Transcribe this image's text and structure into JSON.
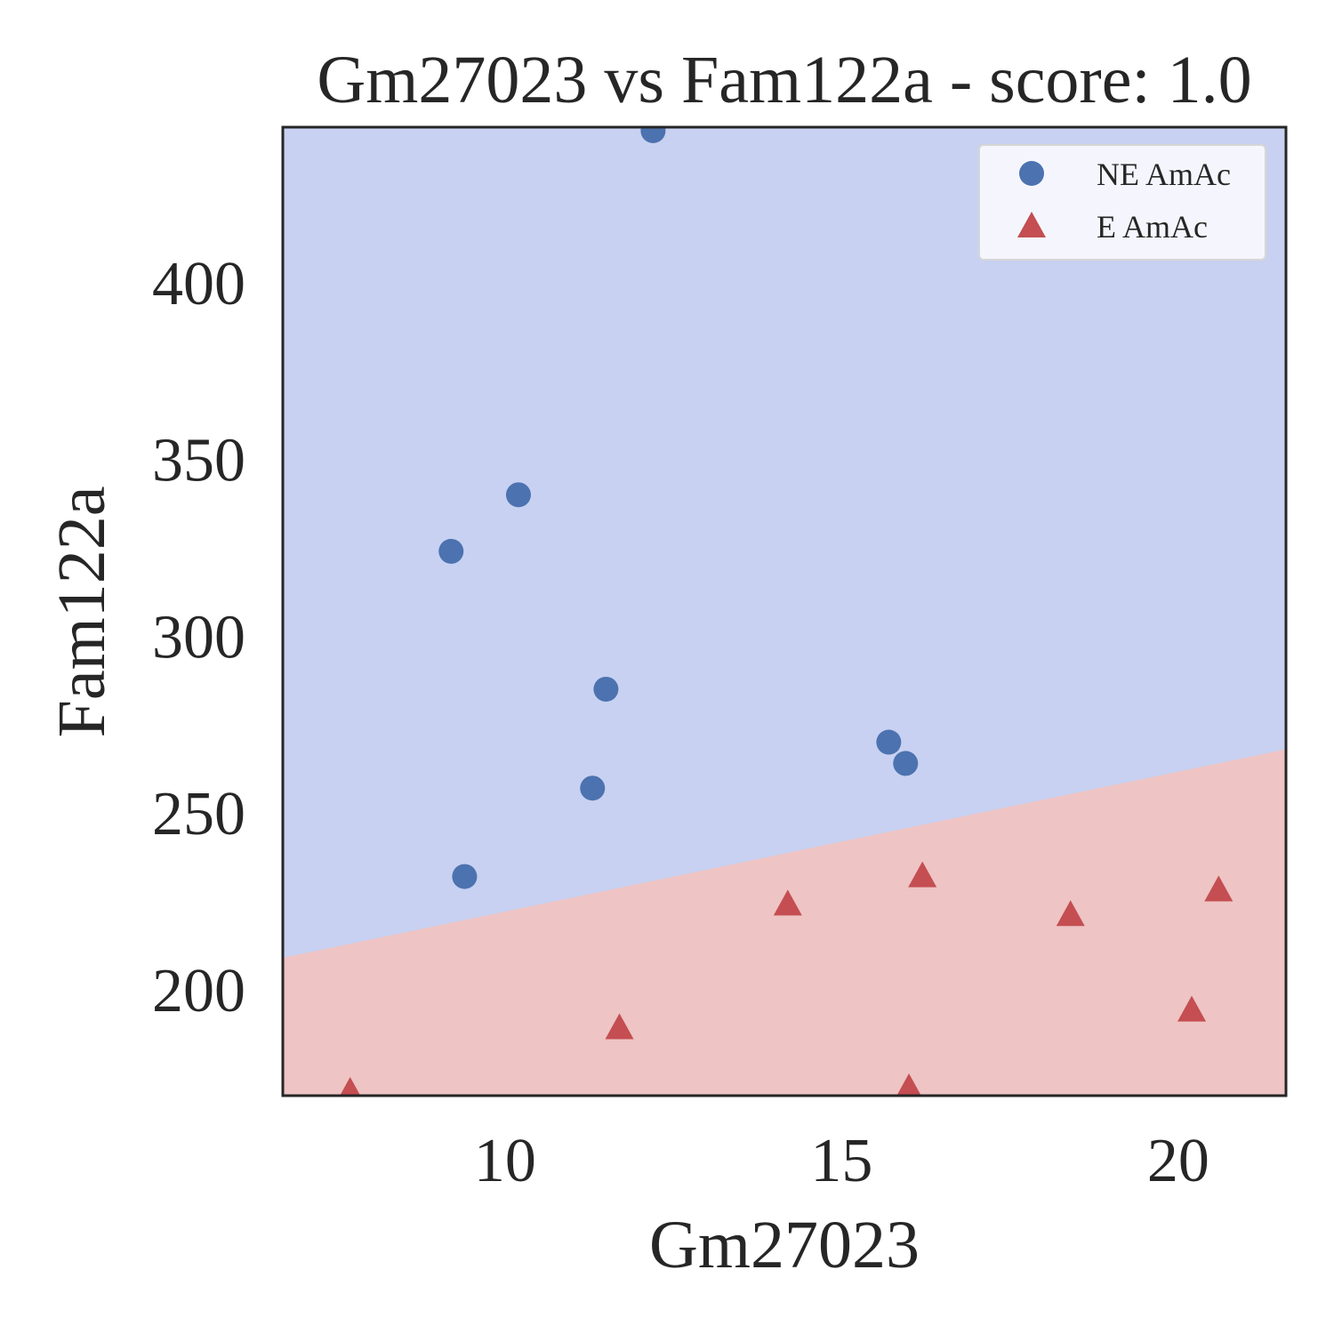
{
  "chart_data": {
    "type": "scatter",
    "title": "Gm27023 vs Fam122a - score: 1.0",
    "xlabel": "Gm27023",
    "ylabel": "Fam122a",
    "xlim": [
      6.7,
      21.6
    ],
    "ylim": [
      170,
      444
    ],
    "xticks": [
      10,
      15,
      20
    ],
    "yticks": [
      200,
      250,
      300,
      350,
      400
    ],
    "grid": false,
    "legend_position": "top-right",
    "decision_boundary": {
      "x": [
        6.7,
        21.6
      ],
      "y": [
        209,
        268
      ],
      "above_class": "NE AmAc",
      "below_class": "E AmAc"
    },
    "series": [
      {
        "name": "NE AmAc",
        "marker": "circle",
        "color": "#4c72b0",
        "region_color": "#c8d1f1",
        "points": [
          {
            "x": 12.2,
            "y": 443
          },
          {
            "x": 10.2,
            "y": 340
          },
          {
            "x": 9.2,
            "y": 324
          },
          {
            "x": 11.5,
            "y": 285
          },
          {
            "x": 15.7,
            "y": 270
          },
          {
            "x": 15.95,
            "y": 264
          },
          {
            "x": 11.3,
            "y": 257
          },
          {
            "x": 9.4,
            "y": 232
          }
        ]
      },
      {
        "name": "E AmAc",
        "marker": "triangle",
        "color": "#c44e52",
        "region_color": "#eec4c4",
        "points": [
          {
            "x": 16.2,
            "y": 232
          },
          {
            "x": 20.6,
            "y": 228
          },
          {
            "x": 14.2,
            "y": 224
          },
          {
            "x": 18.4,
            "y": 221
          },
          {
            "x": 20.2,
            "y": 194
          },
          {
            "x": 11.7,
            "y": 189
          },
          {
            "x": 7.7,
            "y": 171
          },
          {
            "x": 16.0,
            "y": 172
          }
        ]
      }
    ]
  }
}
